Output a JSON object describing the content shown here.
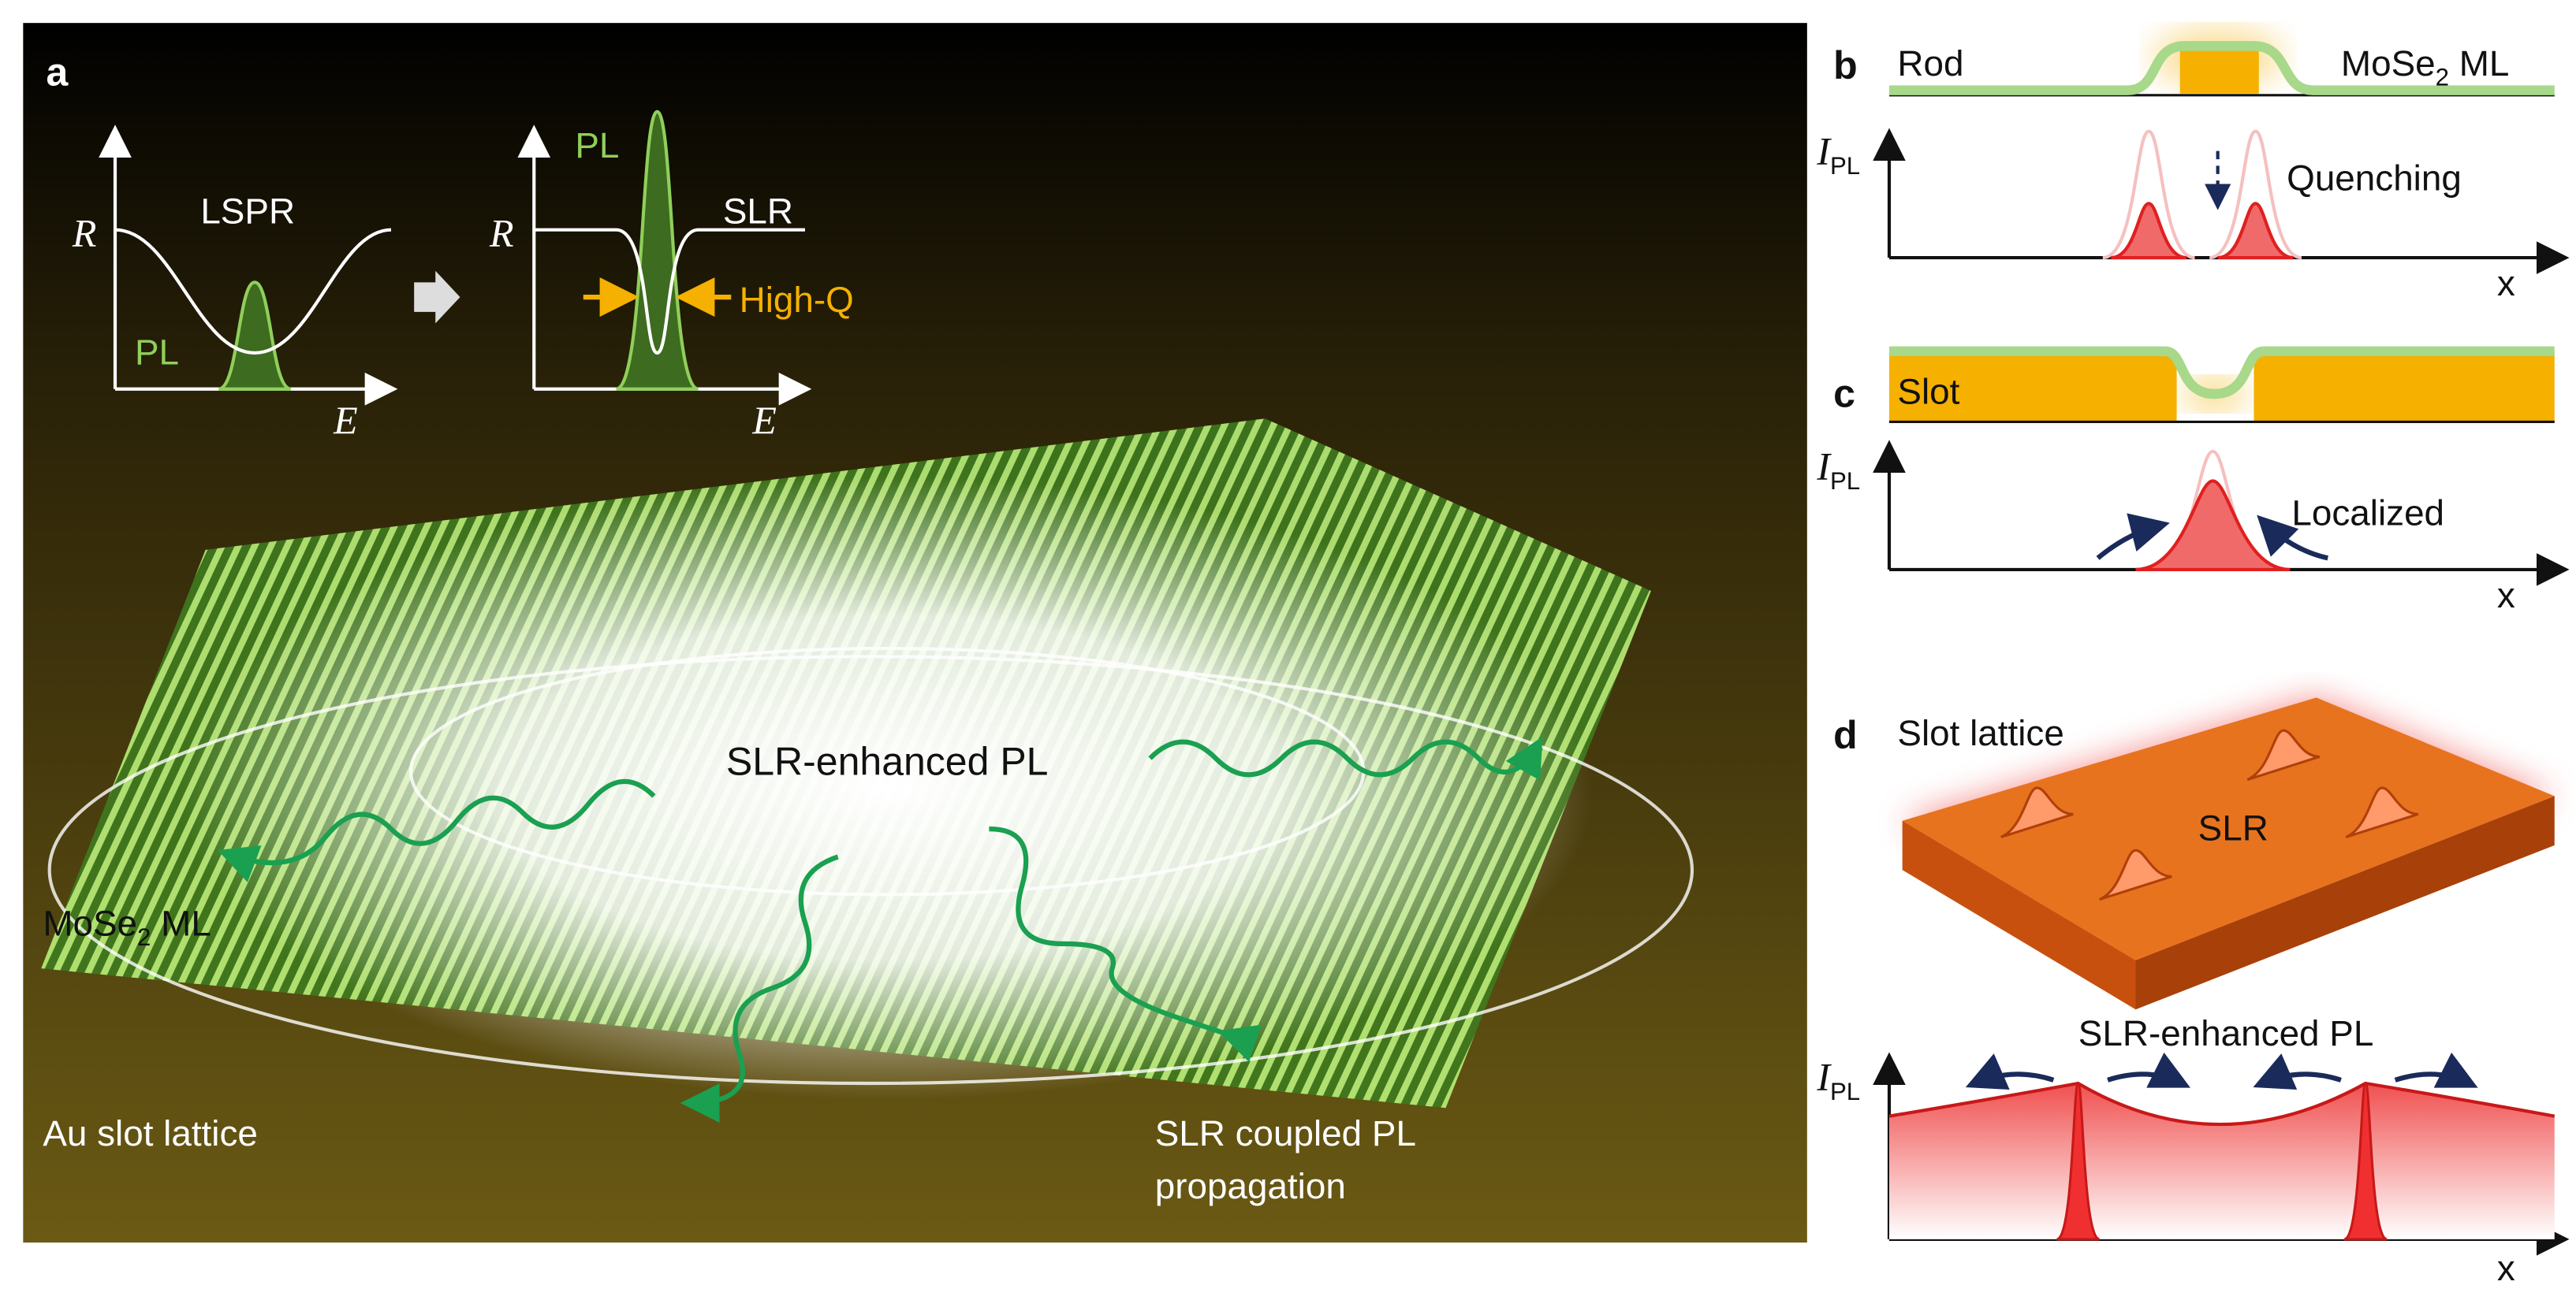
{
  "panel_a": {
    "label": "a",
    "inset_lspr": {
      "y_axis": "R",
      "x_axis": "E",
      "curve": "LSPR",
      "peak": "PL"
    },
    "inset_slr": {
      "y_axis": "R",
      "x_axis": "E",
      "curve": "SLR",
      "peak": "PL",
      "width": "High-Q"
    },
    "center": "SLR-enhanced PL",
    "sheet": {
      "main": "MoSe",
      "sub": "2",
      "rest": " ML"
    },
    "substrate": "Au slot lattice",
    "propagation": [
      "SLR coupled PL",
      "propagation"
    ]
  },
  "panel_b": {
    "label": "b",
    "structure": "Rod",
    "sheet": {
      "main": "MoSe",
      "sub": "2",
      "rest": " ML"
    },
    "y_axis": {
      "main": "I",
      "sub": "PL"
    },
    "effect": "Quenching",
    "x_axis": "x"
  },
  "panel_c": {
    "label": "c",
    "structure": "Slot",
    "y_axis": {
      "main": "I",
      "sub": "PL"
    },
    "effect": "Localized",
    "x_axis": "x"
  },
  "panel_d": {
    "label": "d",
    "structure": "Slot lattice",
    "mode": "SLR",
    "effect": "SLR-enhanced PL",
    "y_axis": {
      "main": "I",
      "sub": "PL"
    },
    "x_axis": "x"
  }
}
